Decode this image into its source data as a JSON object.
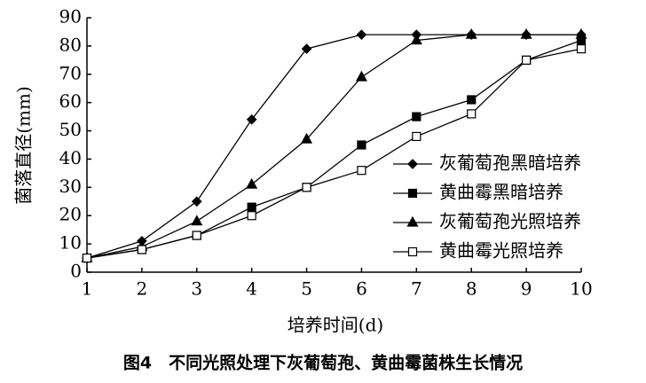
{
  "chart_data": {
    "type": "line",
    "caption": "图4　不同光照处理下灰葡萄孢、黄曲霉菌株生长情况",
    "x_label": "培养时间(d)",
    "y_label": "菌落直径(mm)",
    "x": [
      1,
      2,
      3,
      4,
      5,
      6,
      7,
      8,
      9,
      10
    ],
    "xlim": [
      1,
      10
    ],
    "xticks": [
      1,
      2,
      3,
      4,
      5,
      6,
      7,
      8,
      9,
      10
    ],
    "ylim": [
      0,
      90
    ],
    "yticks": [
      0,
      10,
      20,
      30,
      40,
      50,
      60,
      70,
      80,
      90
    ],
    "legend": "right",
    "series": [
      {
        "name": "灰葡萄孢黑暗培养",
        "color": "#000000",
        "marker": "diamond",
        "values": [
          5,
          11,
          25,
          54,
          79,
          84,
          84,
          84,
          84,
          84
        ]
      },
      {
        "name": "黄曲霉黑暗培养",
        "color": "#000000",
        "marker": "square",
        "values": [
          5,
          8,
          13,
          23,
          30,
          45,
          55,
          61,
          75,
          82
        ]
      },
      {
        "name": "灰葡萄孢光照培养",
        "color": "#000000",
        "marker": "triangle",
        "values": [
          5,
          9,
          18,
          31,
          47,
          69,
          82,
          84,
          84,
          84
        ]
      },
      {
        "name": "黄曲霉光照培养",
        "color": "#000000",
        "marker": "open-square",
        "values": [
          5,
          8,
          13,
          20,
          30,
          36,
          48,
          56,
          75,
          79
        ]
      }
    ]
  }
}
